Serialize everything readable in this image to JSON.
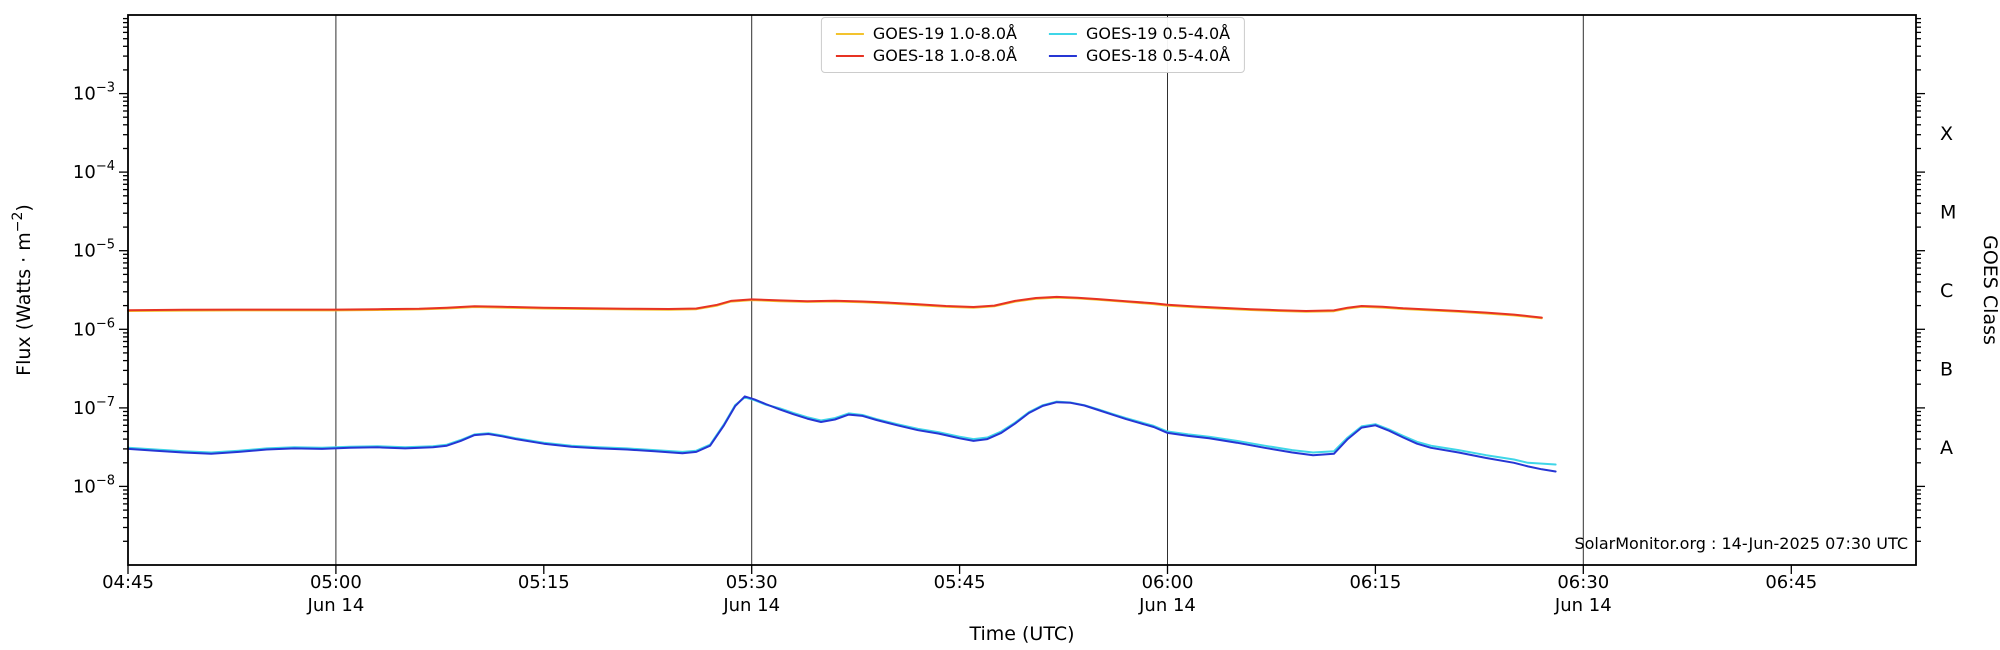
{
  "annotation": "SolarMonitor.org : 14-Jun-2025 07:30 UTC",
  "chart_data": {
    "type": "line",
    "title": "",
    "xlabel": "Time (UTC)",
    "ylabel": "Flux (Watts · m⁻²)",
    "x_encoding": "minutes after 04:45 UTC on 14-Jun-2025",
    "x_domain_minutes": [
      0,
      129
    ],
    "y_domain_exponents": [
      -9,
      -2
    ],
    "grid": "vertical lines at 30-min marks only",
    "legend_position": "top center, 2 columns",
    "x_axis": {
      "title": "Time (UTC)",
      "ticks": [
        {
          "minute": 0,
          "label": "04:45",
          "sub": ""
        },
        {
          "minute": 15,
          "label": "05:00",
          "sub": "Jun 14"
        },
        {
          "minute": 30,
          "label": "05:15",
          "sub": ""
        },
        {
          "minute": 45,
          "label": "05:30",
          "sub": "Jun 14"
        },
        {
          "minute": 60,
          "label": "05:45",
          "sub": ""
        },
        {
          "minute": 75,
          "label": "06:00",
          "sub": "Jun 14"
        },
        {
          "minute": 90,
          "label": "06:15",
          "sub": ""
        },
        {
          "minute": 105,
          "label": "06:30",
          "sub": "Jun 14"
        },
        {
          "minute": 120,
          "label": "06:45",
          "sub": ""
        }
      ],
      "gridline_minutes": [
        15,
        45,
        75,
        105
      ]
    },
    "y_axis": {
      "title": "Flux (Watts · m⁻²)",
      "title_parts": [
        "Flux (Watts · m",
        "−2",
        ")"
      ],
      "scale": "log",
      "ticks": [
        {
          "exponent": -3,
          "label": "10⁻³"
        },
        {
          "exponent": -4,
          "label": "10⁻⁴"
        },
        {
          "exponent": -5,
          "label": "10⁻⁵"
        },
        {
          "exponent": -6,
          "label": "10⁻⁶"
        },
        {
          "exponent": -7,
          "label": "10⁻⁷"
        },
        {
          "exponent": -8,
          "label": "10⁻⁸"
        }
      ]
    },
    "right_axis": {
      "title": "GOES Class",
      "labels": [
        {
          "label": "X",
          "log10_flux": -3.5
        },
        {
          "label": "M",
          "log10_flux": -4.5
        },
        {
          "label": "C",
          "log10_flux": -5.5
        },
        {
          "label": "B",
          "log10_flux": -6.5
        },
        {
          "label": "A",
          "log10_flux": -7.5
        }
      ]
    },
    "series": [
      {
        "name": "GOES-19 1.0-8.0Å",
        "color": "#f3c32e",
        "points": [
          [
            0,
            1.71e-06
          ],
          [
            4,
            1.73e-06
          ],
          [
            8,
            1.74e-06
          ],
          [
            12,
            1.74e-06
          ],
          [
            15,
            1.74e-06
          ],
          [
            18,
            1.76e-06
          ],
          [
            21,
            1.79e-06
          ],
          [
            23,
            1.84e-06
          ],
          [
            25,
            1.92e-06
          ],
          [
            27,
            1.89e-06
          ],
          [
            30,
            1.84e-06
          ],
          [
            33,
            1.81e-06
          ],
          [
            36,
            1.79e-06
          ],
          [
            39,
            1.77e-06
          ],
          [
            41,
            1.8e-06
          ],
          [
            42.5,
            2e-06
          ],
          [
            43.5,
            2.25e-06
          ],
          [
            45,
            2.35e-06
          ],
          [
            47,
            2.28e-06
          ],
          [
            49,
            2.23e-06
          ],
          [
            51,
            2.26e-06
          ],
          [
            53,
            2.21e-06
          ],
          [
            55,
            2.13e-06
          ],
          [
            57,
            2.03e-06
          ],
          [
            59,
            1.94e-06
          ],
          [
            61,
            1.88e-06
          ],
          [
            62.5,
            1.96e-06
          ],
          [
            64,
            2.25e-06
          ],
          [
            65.5,
            2.45e-06
          ],
          [
            67,
            2.53e-06
          ],
          [
            68.5,
            2.47e-06
          ],
          [
            70,
            2.37e-06
          ],
          [
            72,
            2.23e-06
          ],
          [
            74,
            2.09e-06
          ],
          [
            75,
            2e-06
          ],
          [
            77,
            1.91e-06
          ],
          [
            79,
            1.83e-06
          ],
          [
            81,
            1.76e-06
          ],
          [
            83,
            1.71e-06
          ],
          [
            85,
            1.67e-06
          ],
          [
            87,
            1.7e-06
          ],
          [
            88,
            1.84e-06
          ],
          [
            89,
            1.94e-06
          ],
          [
            90.5,
            1.89e-06
          ],
          [
            92,
            1.81e-06
          ],
          [
            94,
            1.74e-06
          ],
          [
            96,
            1.67e-06
          ],
          [
            98,
            1.59e-06
          ],
          [
            100,
            1.5e-06
          ],
          [
            101,
            1.44e-06
          ],
          [
            102,
            1.38e-06
          ]
        ]
      },
      {
        "name": "GOES-18 1.0-8.0Å",
        "color": "#e73323",
        "points": [
          [
            0,
            1.75e-06
          ],
          [
            4,
            1.77e-06
          ],
          [
            8,
            1.78e-06
          ],
          [
            12,
            1.78e-06
          ],
          [
            15,
            1.78e-06
          ],
          [
            18,
            1.8e-06
          ],
          [
            21,
            1.83e-06
          ],
          [
            23,
            1.88e-06
          ],
          [
            25,
            1.96e-06
          ],
          [
            27,
            1.93e-06
          ],
          [
            30,
            1.88e-06
          ],
          [
            33,
            1.85e-06
          ],
          [
            36,
            1.83e-06
          ],
          [
            39,
            1.81e-06
          ],
          [
            41,
            1.84e-06
          ],
          [
            42.5,
            2.05e-06
          ],
          [
            43.5,
            2.3e-06
          ],
          [
            45,
            2.4e-06
          ],
          [
            47,
            2.33e-06
          ],
          [
            49,
            2.28e-06
          ],
          [
            51,
            2.31e-06
          ],
          [
            53,
            2.26e-06
          ],
          [
            55,
            2.18e-06
          ],
          [
            57,
            2.08e-06
          ],
          [
            59,
            1.98e-06
          ],
          [
            61,
            1.92e-06
          ],
          [
            62.5,
            2e-06
          ],
          [
            64,
            2.3e-06
          ],
          [
            65.5,
            2.5e-06
          ],
          [
            67,
            2.58e-06
          ],
          [
            68.5,
            2.52e-06
          ],
          [
            70,
            2.42e-06
          ],
          [
            72,
            2.28e-06
          ],
          [
            74,
            2.14e-06
          ],
          [
            75,
            2.05e-06
          ],
          [
            77,
            1.95e-06
          ],
          [
            79,
            1.87e-06
          ],
          [
            81,
            1.8e-06
          ],
          [
            83,
            1.75e-06
          ],
          [
            85,
            1.71e-06
          ],
          [
            87,
            1.74e-06
          ],
          [
            88,
            1.88e-06
          ],
          [
            89,
            1.98e-06
          ],
          [
            90.5,
            1.93e-06
          ],
          [
            92,
            1.85e-06
          ],
          [
            94,
            1.78e-06
          ],
          [
            96,
            1.71e-06
          ],
          [
            98,
            1.63e-06
          ],
          [
            100,
            1.54e-06
          ],
          [
            101,
            1.47e-06
          ],
          [
            102,
            1.41e-06
          ]
        ]
      },
      {
        "name": "GOES-19 0.5-4.0Å",
        "color": "#3fd6e8",
        "points": [
          [
            0,
            3.1e-08
          ],
          [
            2,
            2.95e-08
          ],
          [
            4,
            2.8e-08
          ],
          [
            6,
            2.7e-08
          ],
          [
            8,
            2.85e-08
          ],
          [
            10,
            3.05e-08
          ],
          [
            12,
            3.15e-08
          ],
          [
            14,
            3.1e-08
          ],
          [
            16,
            3.2e-08
          ],
          [
            18,
            3.25e-08
          ],
          [
            20,
            3.15e-08
          ],
          [
            22,
            3.25e-08
          ],
          [
            23,
            3.4e-08
          ],
          [
            24,
            3.9e-08
          ],
          [
            25,
            4.6e-08
          ],
          [
            26,
            4.75e-08
          ],
          [
            27,
            4.45e-08
          ],
          [
            28,
            4.1e-08
          ],
          [
            30,
            3.6e-08
          ],
          [
            32,
            3.3e-08
          ],
          [
            34,
            3.15e-08
          ],
          [
            36,
            3.05e-08
          ],
          [
            38,
            2.9e-08
          ],
          [
            40,
            2.75e-08
          ],
          [
            41,
            2.85e-08
          ],
          [
            42,
            3.4e-08
          ],
          [
            43,
            6.2e-08
          ],
          [
            43.8,
            1.08e-07
          ],
          [
            44.5,
            1.36e-07
          ],
          [
            45.2,
            1.25e-07
          ],
          [
            46,
            1.1e-07
          ],
          [
            47,
            9.9e-08
          ],
          [
            48,
            8.6e-08
          ],
          [
            49,
            7.6e-08
          ],
          [
            50,
            6.9e-08
          ],
          [
            51,
            7.4e-08
          ],
          [
            52,
            8.5e-08
          ],
          [
            53,
            8.1e-08
          ],
          [
            54,
            7.2e-08
          ],
          [
            55.5,
            6.2e-08
          ],
          [
            57,
            5.4e-08
          ],
          [
            58.5,
            4.9e-08
          ],
          [
            60,
            4.3e-08
          ],
          [
            61,
            4e-08
          ],
          [
            62,
            4.2e-08
          ],
          [
            63,
            5e-08
          ],
          [
            64,
            6.5e-08
          ],
          [
            65,
            8.8e-08
          ],
          [
            66,
            1.08e-07
          ],
          [
            67,
            1.2e-07
          ],
          [
            68,
            1.17e-07
          ],
          [
            69,
            1.08e-07
          ],
          [
            70,
            9.6e-08
          ],
          [
            71,
            8.4e-08
          ],
          [
            72,
            7.4e-08
          ],
          [
            73,
            6.6e-08
          ],
          [
            74,
            5.9e-08
          ],
          [
            75,
            5e-08
          ],
          [
            76.5,
            4.6e-08
          ],
          [
            78,
            4.3e-08
          ],
          [
            80,
            3.8e-08
          ],
          [
            82,
            3.3e-08
          ],
          [
            84,
            2.9e-08
          ],
          [
            85.5,
            2.7e-08
          ],
          [
            87,
            2.8e-08
          ],
          [
            88,
            4.2e-08
          ],
          [
            89,
            5.8e-08
          ],
          [
            90,
            6.2e-08
          ],
          [
            91,
            5.3e-08
          ],
          [
            92,
            4.4e-08
          ],
          [
            93,
            3.7e-08
          ],
          [
            94,
            3.3e-08
          ],
          [
            96,
            2.9e-08
          ],
          [
            98,
            2.5e-08
          ],
          [
            100,
            2.2e-08
          ],
          [
            101,
            2e-08
          ],
          [
            102,
            1.95e-08
          ],
          [
            103,
            1.9e-08
          ]
        ]
      },
      {
        "name": "GOES-18 0.5-4.0Å",
        "color": "#2636d4",
        "points": [
          [
            0,
            3e-08
          ],
          [
            2,
            2.85e-08
          ],
          [
            4,
            2.7e-08
          ],
          [
            6,
            2.6e-08
          ],
          [
            8,
            2.75e-08
          ],
          [
            10,
            2.95e-08
          ],
          [
            12,
            3.05e-08
          ],
          [
            14,
            3e-08
          ],
          [
            16,
            3.1e-08
          ],
          [
            18,
            3.15e-08
          ],
          [
            20,
            3.05e-08
          ],
          [
            22,
            3.15e-08
          ],
          [
            23,
            3.3e-08
          ],
          [
            24,
            3.8e-08
          ],
          [
            25,
            4.5e-08
          ],
          [
            26,
            4.65e-08
          ],
          [
            27,
            4.35e-08
          ],
          [
            28,
            4e-08
          ],
          [
            30,
            3.5e-08
          ],
          [
            32,
            3.2e-08
          ],
          [
            34,
            3.05e-08
          ],
          [
            36,
            2.95e-08
          ],
          [
            38,
            2.8e-08
          ],
          [
            40,
            2.65e-08
          ],
          [
            41,
            2.75e-08
          ],
          [
            42,
            3.3e-08
          ],
          [
            43,
            6e-08
          ],
          [
            43.8,
            1.05e-07
          ],
          [
            44.5,
            1.4e-07
          ],
          [
            45.2,
            1.28e-07
          ],
          [
            46,
            1.12e-07
          ],
          [
            47,
            9.6e-08
          ],
          [
            48,
            8.3e-08
          ],
          [
            49,
            7.3e-08
          ],
          [
            50,
            6.6e-08
          ],
          [
            51,
            7.1e-08
          ],
          [
            52,
            8.2e-08
          ],
          [
            53,
            7.9e-08
          ],
          [
            54,
            7e-08
          ],
          [
            55.5,
            6e-08
          ],
          [
            57,
            5.2e-08
          ],
          [
            58.5,
            4.7e-08
          ],
          [
            60,
            4.1e-08
          ],
          [
            61,
            3.8e-08
          ],
          [
            62,
            4e-08
          ],
          [
            63,
            4.8e-08
          ],
          [
            64,
            6.3e-08
          ],
          [
            65,
            8.6e-08
          ],
          [
            66,
            1.06e-07
          ],
          [
            67,
            1.18e-07
          ],
          [
            68,
            1.16e-07
          ],
          [
            69,
            1.07e-07
          ],
          [
            70,
            9.4e-08
          ],
          [
            71,
            8.2e-08
          ],
          [
            72,
            7.2e-08
          ],
          [
            73,
            6.4e-08
          ],
          [
            74,
            5.7e-08
          ],
          [
            75,
            4.8e-08
          ],
          [
            76.5,
            4.4e-08
          ],
          [
            78,
            4.1e-08
          ],
          [
            80,
            3.6e-08
          ],
          [
            82,
            3.1e-08
          ],
          [
            84,
            2.7e-08
          ],
          [
            85.5,
            2.5e-08
          ],
          [
            87,
            2.6e-08
          ],
          [
            88,
            4e-08
          ],
          [
            89,
            5.6e-08
          ],
          [
            90,
            6e-08
          ],
          [
            91,
            5.1e-08
          ],
          [
            92,
            4.2e-08
          ],
          [
            93,
            3.5e-08
          ],
          [
            94,
            3.1e-08
          ],
          [
            96,
            2.7e-08
          ],
          [
            98,
            2.3e-08
          ],
          [
            100,
            2e-08
          ],
          [
            101,
            1.8e-08
          ],
          [
            102,
            1.65e-08
          ],
          [
            103,
            1.55e-08
          ]
        ]
      }
    ],
    "annotation": "SolarMonitor.org : 14-Jun-2025 07:30 UTC",
    "style": {
      "background": "#ffffff",
      "frame_color": "#000000",
      "gridline_color": "#2f2f2f",
      "text_color": "#000000",
      "legend_border_color": "#cccccc"
    }
  }
}
